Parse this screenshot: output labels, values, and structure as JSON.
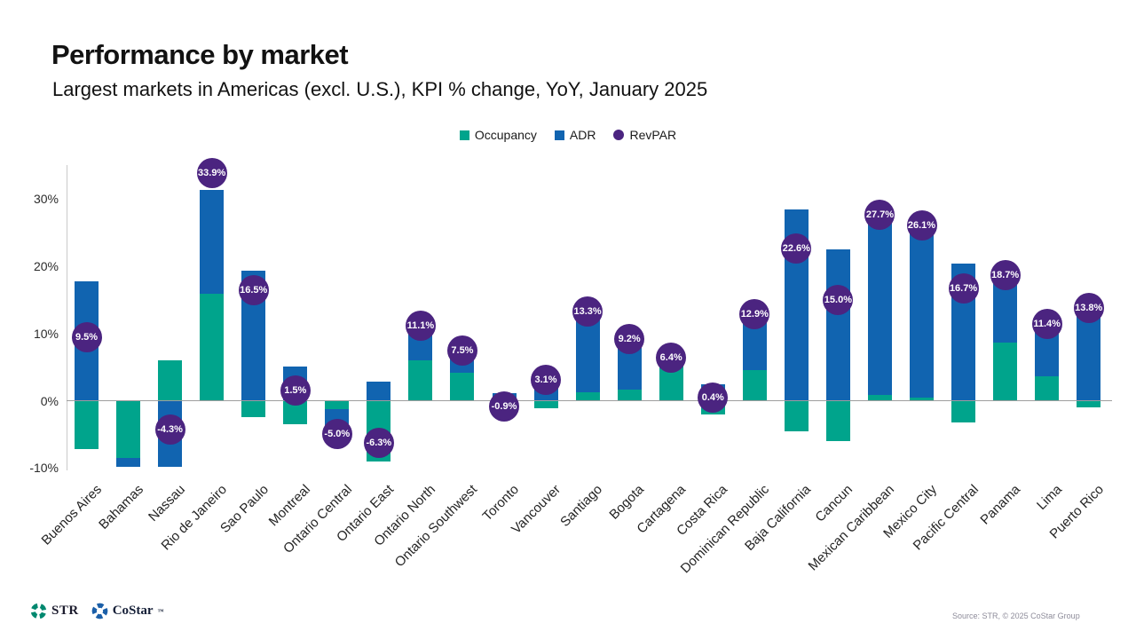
{
  "header": {
    "title": "Performance by market",
    "subtitle": "Largest markets in Americas (excl. U.S.), KPI % change, YoY, January 2025"
  },
  "legend": {
    "occupancy_label": "Occupancy",
    "adr_label": "ADR",
    "revpar_label": "RevPAR"
  },
  "colors": {
    "occupancy": "#00A48C",
    "adr": "#1164B0",
    "revpar": "#4B2480",
    "zero_line": "#9e9e9e",
    "axis_line": "#c9c9c9"
  },
  "chart_data": {
    "type": "bar",
    "stacked": true,
    "title": "Performance by market",
    "subtitle": "Largest markets in Americas (excl. U.S.), KPI % change, YoY, January 2025",
    "unit": "% change YoY",
    "categories": [
      "Buenos Aires",
      "Bahamas",
      "Nassau",
      "Rio de Janeiro",
      "Sao Paulo",
      "Montreal",
      "Ontario Central",
      "Ontario East",
      "Ontario North",
      "Ontario Southwest",
      "Toronto",
      "Vancouver",
      "Santiago",
      "Bogota",
      "Cartagena",
      "Costa Rica",
      "Dominican Republic",
      "Baja California",
      "Cancun",
      "Mexican Caribbean",
      "Mexico City",
      "Pacific Central",
      "Panama",
      "Lima",
      "Puerto Rico"
    ],
    "series": [
      {
        "name": "Occupancy",
        "values": [
          -7.2,
          -8.5,
          6.0,
          15.9,
          -2.4,
          -3.5,
          -1.2,
          -9.0,
          6.0,
          4.2,
          -2.0,
          -1.1,
          1.2,
          1.6,
          5.3,
          -2.0,
          4.6,
          -4.5,
          -6.0,
          0.8,
          0.4,
          -3.2,
          8.6,
          3.6,
          -1.0
        ]
      },
      {
        "name": "ADR",
        "values": [
          17.8,
          -1.4,
          -9.9,
          15.5,
          19.4,
          5.1,
          -3.8,
          2.9,
          4.8,
          3.2,
          1.1,
          4.2,
          12.0,
          7.5,
          1.0,
          2.4,
          7.9,
          28.4,
          22.5,
          26.7,
          25.6,
          20.4,
          9.3,
          7.5,
          14.9
        ]
      },
      {
        "name": "RevPAR",
        "values": [
          9.5,
          null,
          -4.3,
          33.9,
          16.5,
          1.5,
          -5.0,
          -6.3,
          11.1,
          7.5,
          -0.9,
          3.1,
          13.3,
          9.2,
          6.4,
          0.4,
          12.9,
          22.6,
          15.0,
          27.7,
          26.1,
          16.7,
          18.7,
          11.4,
          13.8
        ],
        "labels": [
          "9.5%",
          null,
          "-4.3%",
          "33.9%",
          "16.5%",
          "1.5%",
          "-5.0%",
          "-6.3%",
          "11.1%",
          "7.5%",
          "-0.9%",
          "3.1%",
          "13.3%",
          "9.2%",
          "6.4%",
          "0.4%",
          "12.9%",
          "22.6%",
          "15.0%",
          "27.7%",
          "26.1%",
          "16.7%",
          "18.7%",
          "11.4%",
          "13.8%"
        ]
      }
    ],
    "ytick_labels": [
      "30%",
      "20%",
      "10%",
      "0%",
      "-10%"
    ],
    "ytick_values": [
      30,
      20,
      10,
      0,
      -10
    ],
    "ylim": [
      -10.5,
      35
    ],
    "grid": "zero-line-only",
    "legend_position": "top-center"
  },
  "footer": {
    "str_label": "STR",
    "costar_label": "CoStar",
    "costar_tm": "™",
    "source": "Source: STR, © 2025 CoStar Group"
  }
}
